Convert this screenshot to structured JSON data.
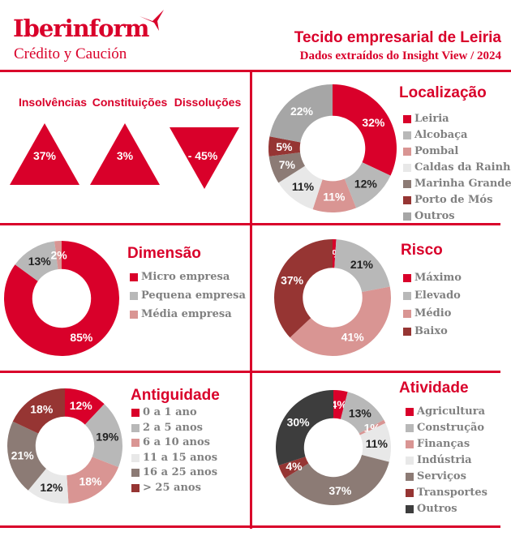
{
  "header": {
    "logo": "Iberinform",
    "logo_sub": "Crédito y Caución",
    "title": "Tecido empresarial de Leiria",
    "subtitle": "Dados extraídos do Insight View / 2024"
  },
  "indicators": [
    {
      "label": "Insolvências",
      "value": "37%",
      "direction": "up"
    },
    {
      "label": "Constituições",
      "value": "3%",
      "direction": "up"
    },
    {
      "label": "Dissoluções",
      "value": "- 45%",
      "direction": "down"
    }
  ],
  "colors": {
    "accent": "#d9002a"
  },
  "chart_data": [
    {
      "type": "pie",
      "title": "Localização",
      "categories": [
        "Leiria",
        "Alcobaça",
        "Pombal",
        "Caldas da Rainha",
        "Marinha Grande",
        "Porto de Mós",
        "Outros"
      ],
      "values": [
        32,
        12,
        11,
        11,
        7,
        5,
        22
      ],
      "labels": [
        "32%",
        "12%",
        "11%",
        "11%",
        "7%",
        "5%",
        "22%"
      ],
      "colors": [
        "#d9002a",
        "#b8b8b8",
        "#d99593",
        "#e8e8e8",
        "#8c7b75",
        "#963533",
        "#a6a6a6"
      ]
    },
    {
      "type": "pie",
      "title": "Dimensão",
      "categories": [
        "Micro empresa",
        "Pequena empresa",
        "Média empresa"
      ],
      "values": [
        85,
        13,
        2
      ],
      "labels": [
        "85%",
        "13%",
        "2%"
      ],
      "colors": [
        "#d9002a",
        "#b8b8b8",
        "#d99593"
      ]
    },
    {
      "type": "pie",
      "title": "Risco",
      "categories": [
        "Máximo",
        "Elevado",
        "Médio",
        "Baixo"
      ],
      "values": [
        1,
        21,
        41,
        37
      ],
      "labels": [
        "1%",
        "21%",
        "41%",
        "37%"
      ],
      "colors": [
        "#d9002a",
        "#b8b8b8",
        "#d99593",
        "#963533"
      ]
    },
    {
      "type": "pie",
      "title": "Antiguidade",
      "categories": [
        "0 a 1 ano",
        "2 a 5 anos",
        "6 a 10 anos",
        "11 a 15 anos",
        "16 a 25 anos",
        "> 25 anos"
      ],
      "values": [
        12,
        19,
        18,
        12,
        21,
        18
      ],
      "labels": [
        "12%",
        "19%",
        "18%",
        "12%",
        "21%",
        "18%"
      ],
      "colors": [
        "#d9002a",
        "#b8b8b8",
        "#d99593",
        "#e8e8e8",
        "#8c7b75",
        "#963533"
      ]
    },
    {
      "type": "pie",
      "title": "Atividade",
      "categories": [
        "Agricultura",
        "Construção",
        "Finanças",
        "Indústria",
        "Serviços",
        "Transportes",
        "Outros"
      ],
      "values": [
        4,
        13,
        1,
        11,
        37,
        4,
        30
      ],
      "labels": [
        "4%",
        "13%",
        "1%",
        "11%",
        "37%",
        "4%",
        "30%"
      ],
      "colors": [
        "#d9002a",
        "#b8b8b8",
        "#d99593",
        "#e8e8e8",
        "#8c7b75",
        "#963533",
        "#3d3d3d"
      ]
    }
  ]
}
